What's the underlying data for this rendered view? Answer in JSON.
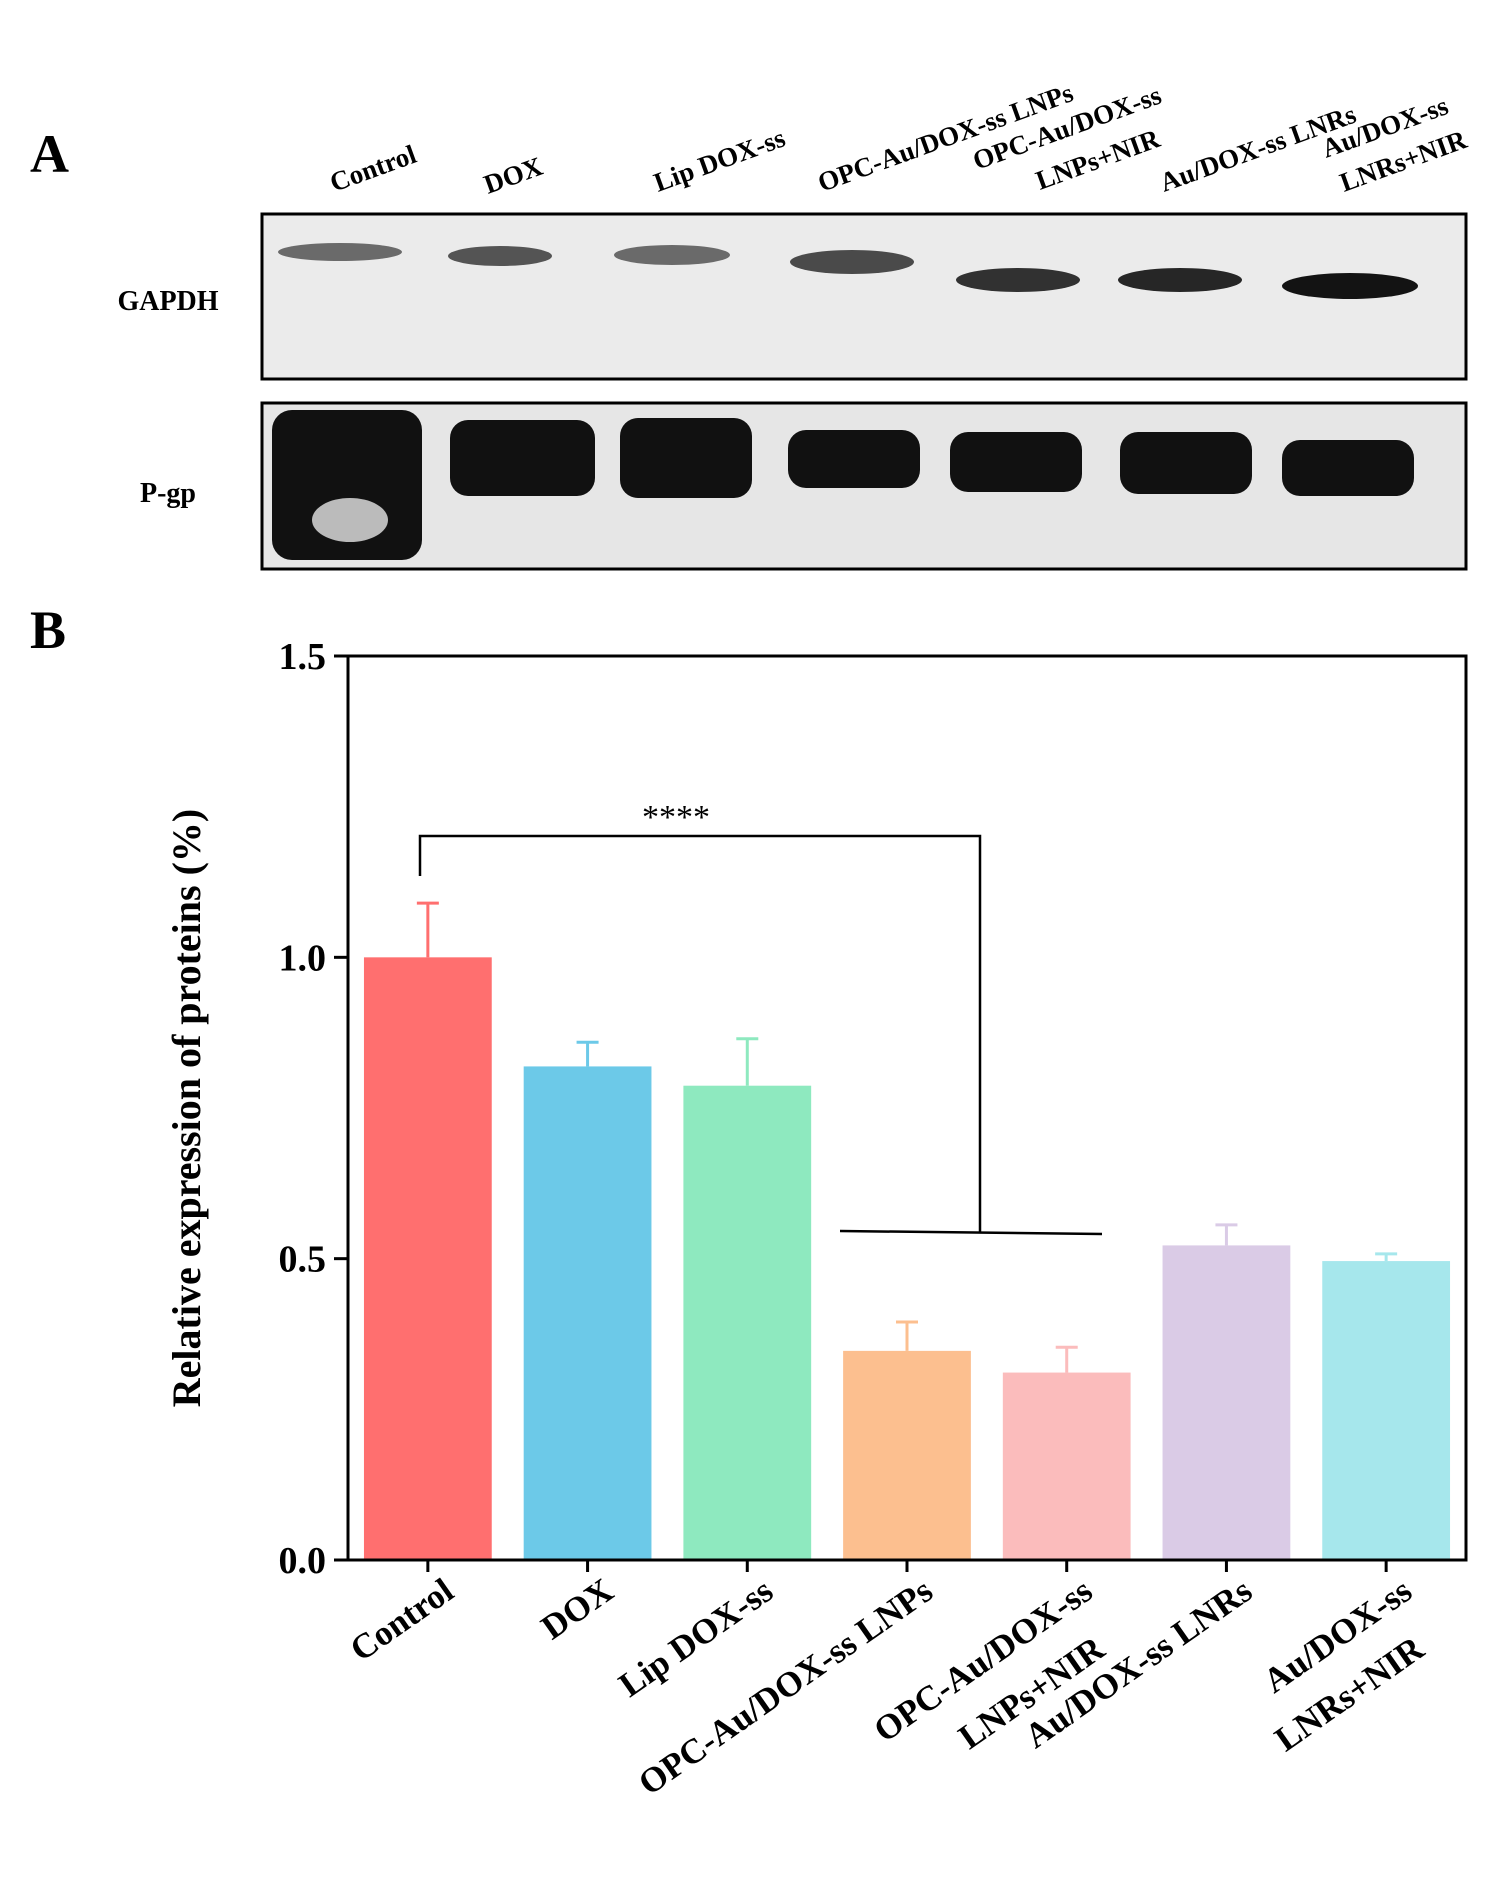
{
  "panels": {
    "a": "A",
    "b": "B"
  },
  "blot": {
    "lanes": [
      [
        "Control"
      ],
      [
        "DOX"
      ],
      [
        "Lip DOX-ss"
      ],
      [
        "OPC-Au/DOX-ss LNPs"
      ],
      [
        "OPC-Au/DOX-ss",
        "LNPs+NIR"
      ],
      [
        "Au/DOX-ss LNRs"
      ],
      [
        "Au/DOX-ss",
        "LNRs+NIR"
      ]
    ],
    "rows": [
      "GAPDH",
      "P-gp"
    ]
  },
  "chart_data": {
    "type": "bar",
    "y_label": "Relative expression of proteins (%)",
    "categories": [
      [
        "Control"
      ],
      [
        "DOX"
      ],
      [
        "Lip DOX-ss"
      ],
      [
        "OPC-Au/DOX-ss LNPs"
      ],
      [
        "OPC-Au/DOX-ss",
        "LNPs+NIR"
      ],
      [
        "Au/DOX-ss LNRs"
      ],
      [
        "Au/DOX-ss",
        "LNRs+NIR"
      ]
    ],
    "values": [
      1.0,
      0.819,
      0.787,
      0.347,
      0.311,
      0.522,
      0.496
    ],
    "errors": [
      0.09,
      0.04,
      0.078,
      0.048,
      0.042,
      0.034,
      0.012
    ],
    "colors": [
      "#ff6f6f",
      "#6cc9e8",
      "#8ee9bf",
      "#fcbf8f",
      "#fbbcbc",
      "#dacbe6",
      "#a6e7ec"
    ],
    "ylim": [
      0,
      1.5
    ],
    "yticks": [
      {
        "value": 0,
        "label": "0.0"
      },
      {
        "value": 0.5,
        "label": "0.5"
      },
      {
        "value": 1.0,
        "label": "1.0"
      },
      {
        "value": 1.5,
        "label": "1.5"
      }
    ],
    "annotation": "****"
  }
}
